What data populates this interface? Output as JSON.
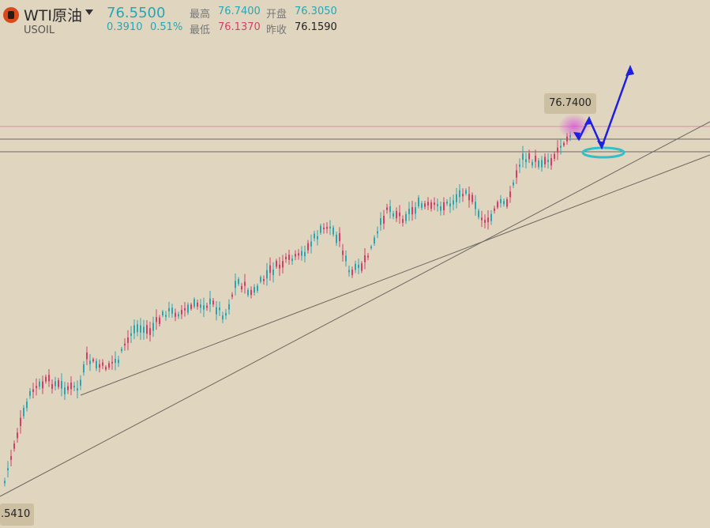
{
  "header": {
    "title": "WTI原油",
    "symbol": "USOIL",
    "price": "76.5500",
    "change": "0.3910",
    "change_pct": "0.51%",
    "high_label": "最高",
    "high_value": "76.7400",
    "open_label": "开盘",
    "open_value": "76.3050",
    "low_label": "最低",
    "low_value": "76.1370",
    "prev_close_label": "昨收",
    "prev_close_value": "76.1590"
  },
  "chart": {
    "high_tag": "76.7400",
    "low_tag": ".5410"
  },
  "colors": {
    "up": "#28a6b4",
    "down": "#d2406a",
    "background": "#e0d5bf",
    "arrow": "#1f1fe0"
  },
  "icons": [
    "wti-logo-icon",
    "dropdown-caret-icon"
  ]
}
